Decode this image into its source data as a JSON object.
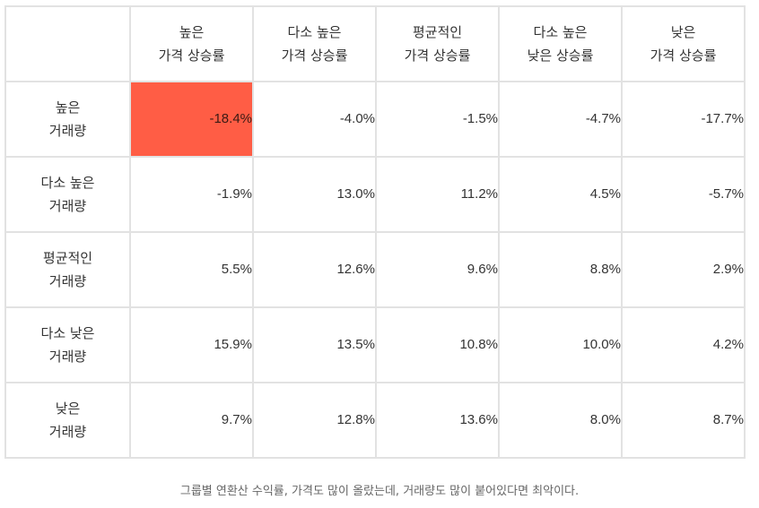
{
  "table": {
    "corner": "",
    "columns": [
      {
        "line1": "높은",
        "line2": "가격 상승률",
        "bold": true
      },
      {
        "line1": "다소 높은",
        "line2": "가격 상승률",
        "bold": false
      },
      {
        "line1": "평균적인",
        "line2": "가격 상승률",
        "bold": false
      },
      {
        "line1": "다소 높은",
        "line2": "낮은 상승률",
        "bold": false
      },
      {
        "line1": "낮은",
        "line2": "가격 상승률",
        "bold": false
      }
    ],
    "rows": [
      {
        "line1": "높은",
        "line2": "거래량",
        "bold": true,
        "values": [
          "-18.4%",
          "-4.0%",
          "-1.5%",
          "-4.7%",
          "-17.7%"
        ]
      },
      {
        "line1": "다소 높은",
        "line2": "거래량",
        "bold": false,
        "values": [
          "-1.9%",
          "13.0%",
          "11.2%",
          "4.5%",
          "-5.7%"
        ]
      },
      {
        "line1": "평균적인",
        "line2": "거래량",
        "bold": false,
        "values": [
          "5.5%",
          "12.6%",
          "9.6%",
          "8.8%",
          "2.9%"
        ]
      },
      {
        "line1": "다소 낮은",
        "line2": "거래량",
        "bold": false,
        "values": [
          "15.9%",
          "13.5%",
          "10.8%",
          "10.0%",
          "4.2%"
        ]
      },
      {
        "line1": "낮은",
        "line2": "거래량",
        "bold": false,
        "values": [
          "9.7%",
          "12.8%",
          "13.6%",
          "8.0%",
          "8.7%"
        ]
      }
    ],
    "highlight": {
      "row": 0,
      "col": 0,
      "color": "#ff5d45"
    }
  },
  "caption": "그룹별 연환산 수익률, 가격도 많이 올랐는데, 거래량도 많이 붙어있다면 최악이다."
}
